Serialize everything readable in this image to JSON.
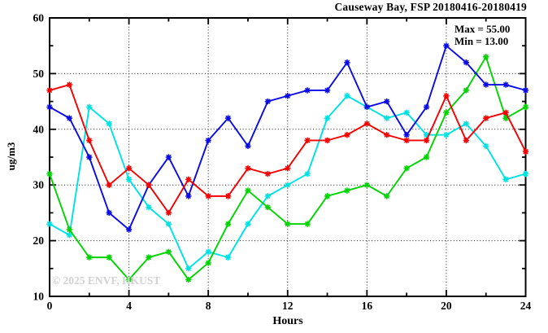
{
  "chart_data": {
    "type": "line",
    "title": "Causeway Bay, FSP 20180416-20180419",
    "xlabel": "Hours",
    "ylabel": "ug/m3",
    "xlim": [
      0,
      24
    ],
    "ylim": [
      10,
      60
    ],
    "x_major_ticks": [
      0,
      4,
      8,
      12,
      16,
      20,
      24
    ],
    "x_minor_ticks": [
      2,
      6,
      10,
      14,
      18,
      22
    ],
    "y_major_ticks": [
      10,
      20,
      30,
      40,
      50,
      60
    ],
    "y_minor_ticks": [
      15,
      25,
      35,
      45,
      55
    ],
    "grid_x": [
      4,
      8,
      12,
      16,
      20
    ],
    "grid_y": [
      20,
      30,
      40,
      50
    ],
    "legend_position": "none",
    "annotations": {
      "max": "Max = 55.00",
      "min": "Min = 13.00"
    },
    "watermark": "© 2025 ENVF, HKUST",
    "x": [
      0,
      1,
      2,
      3,
      4,
      5,
      6,
      7,
      8,
      9,
      10,
      11,
      12,
      13,
      14,
      15,
      16,
      17,
      18,
      19,
      20,
      21,
      22,
      23,
      24
    ],
    "series": [
      {
        "name": "cyan",
        "color": "#00e2e2",
        "values": [
          23,
          21,
          44,
          41,
          31,
          26,
          23,
          15,
          18,
          17,
          23,
          28,
          30,
          32,
          42,
          46,
          44,
          42,
          43,
          39,
          39,
          41,
          37,
          31,
          32
        ]
      },
      {
        "name": "green",
        "color": "#00d400",
        "values": [
          32,
          22,
          17,
          17,
          13,
          17,
          18,
          13,
          16,
          23,
          29,
          26,
          23,
          23,
          28,
          29,
          30,
          28,
          33,
          35,
          43,
          47,
          53,
          42,
          44
        ]
      },
      {
        "name": "blue",
        "color": "#0a0ae6",
        "values": [
          44,
          42,
          35,
          25,
          22,
          30,
          35,
          28,
          38,
          42,
          37,
          45,
          46,
          47,
          47,
          52,
          44,
          45,
          39,
          44,
          55,
          52,
          48,
          48,
          47
        ]
      },
      {
        "name": "red",
        "color": "#f40000",
        "values": [
          47,
          48,
          38,
          30,
          33,
          30,
          25,
          31,
          28,
          28,
          33,
          32,
          33,
          38,
          38,
          39,
          41,
          39,
          38,
          38,
          46,
          38,
          42,
          43,
          36
        ]
      }
    ]
  }
}
